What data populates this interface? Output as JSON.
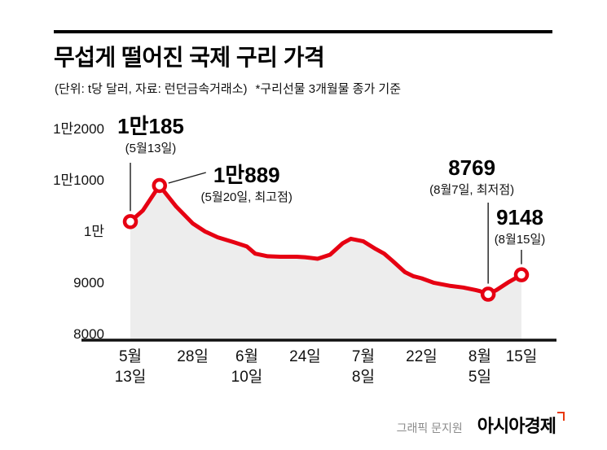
{
  "header": {
    "title": "무섭게 떨어진 국제 구리 가격",
    "subtitle_unit_source": "(단위: t당 달러, 자료: 런던금속거래소)",
    "subtitle_note": "*구리선물 3개월물 종가 기준"
  },
  "footer": {
    "credit": "그래픽 문지원",
    "logo_text": "아시아경제",
    "logo_mark_color": "#e8380d"
  },
  "chart_data": {
    "type": "line",
    "title": "무섭게 떨어진 국제 구리 가격",
    "unit": "t당 달러",
    "source": "런던금속거래소",
    "note": "구리선물 3개월물 종가 기준",
    "line_color": "#e60012",
    "area_color": "#ededed",
    "axis_color": "#111111",
    "text_color": "#111111",
    "ylim": [
      8000,
      12000
    ],
    "grid": false,
    "yticks": [
      {
        "value": 12000,
        "label": "1만2000"
      },
      {
        "value": 11000,
        "label": "1만1000"
      },
      {
        "value": 10000,
        "label": "1만"
      },
      {
        "value": 9000,
        "label": "9000"
      },
      {
        "value": 8000,
        "label": "8000"
      }
    ],
    "xticks": [
      {
        "day": 0,
        "lines": [
          "5월",
          "13일"
        ]
      },
      {
        "day": 15,
        "lines": [
          "28일"
        ]
      },
      {
        "day": 28,
        "lines": [
          "6월",
          "10일"
        ]
      },
      {
        "day": 42,
        "lines": [
          "24일"
        ]
      },
      {
        "day": 56,
        "lines": [
          "7월",
          "8일"
        ]
      },
      {
        "day": 70,
        "lines": [
          "22일"
        ]
      },
      {
        "day": 84,
        "lines": [
          "8월",
          "5일"
        ]
      },
      {
        "day": 94,
        "lines": [
          "15일"
        ]
      }
    ],
    "series": [
      {
        "name": "구리 선물 3개월물 종가",
        "points": [
          [
            0,
            10185
          ],
          [
            3,
            10400
          ],
          [
            7,
            10889
          ],
          [
            11,
            10480
          ],
          [
            15,
            10150
          ],
          [
            18,
            9990
          ],
          [
            21,
            9880
          ],
          [
            25,
            9780
          ],
          [
            28,
            9700
          ],
          [
            30,
            9560
          ],
          [
            33,
            9510
          ],
          [
            36,
            9500
          ],
          [
            40,
            9500
          ],
          [
            42,
            9490
          ],
          [
            45,
            9460
          ],
          [
            48,
            9540
          ],
          [
            51,
            9760
          ],
          [
            53,
            9850
          ],
          [
            56,
            9800
          ],
          [
            59,
            9650
          ],
          [
            61,
            9560
          ],
          [
            63,
            9420
          ],
          [
            66,
            9200
          ],
          [
            68,
            9120
          ],
          [
            70,
            9080
          ],
          [
            73,
            8990
          ],
          [
            77,
            8930
          ],
          [
            80,
            8900
          ],
          [
            83,
            8850
          ],
          [
            84,
            8830
          ],
          [
            86,
            8769
          ],
          [
            88,
            8850
          ],
          [
            91,
            9010
          ],
          [
            94,
            9148
          ]
        ]
      }
    ],
    "annotations": [
      {
        "day": 0,
        "value": 10185,
        "value_label": "1만185",
        "date_label": "(5월13일)"
      },
      {
        "day": 7,
        "value": 10889,
        "value_label": "1만889",
        "date_label": "(5월20일, 최고점)"
      },
      {
        "day": 86,
        "value": 8769,
        "value_label": "8769",
        "date_label": "(8월7일, 최저점)"
      },
      {
        "day": 94,
        "value": 9148,
        "value_label": "9148",
        "date_label": "(8월15일)"
      }
    ]
  }
}
